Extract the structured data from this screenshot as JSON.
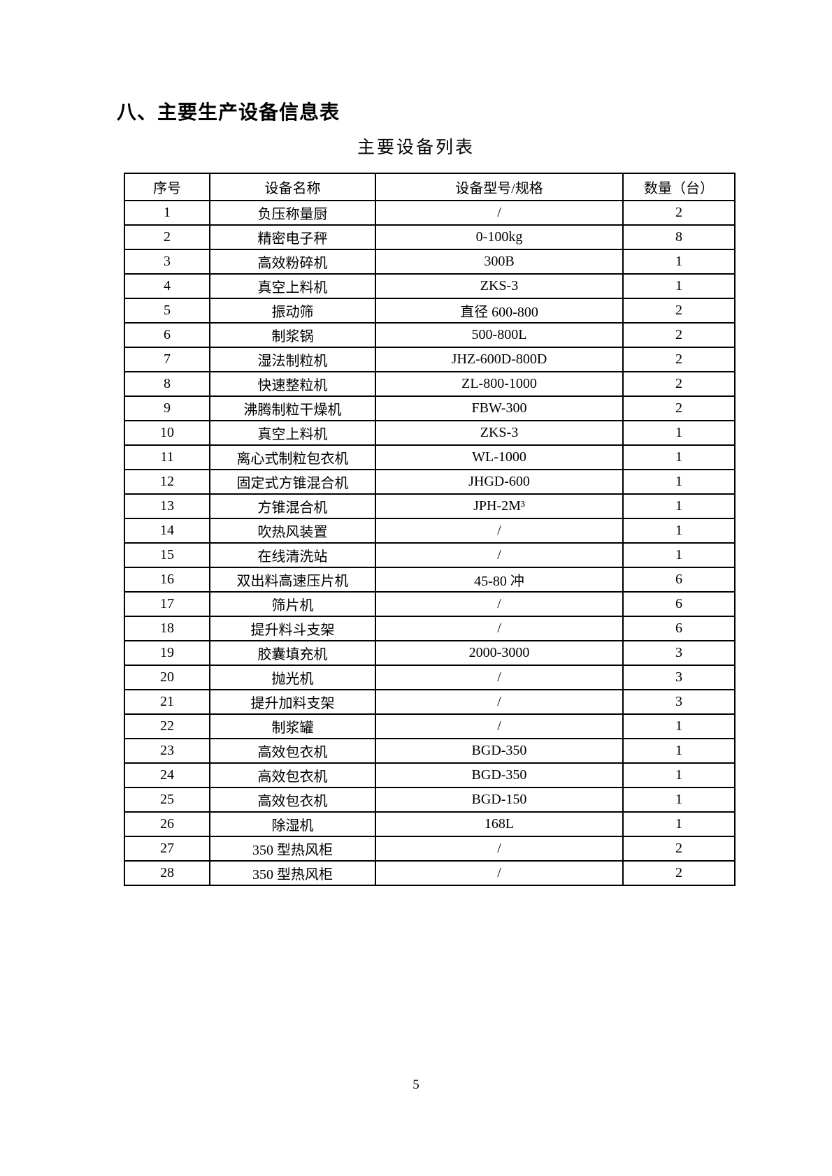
{
  "page": {
    "heading": "八、主要生产设备信息表",
    "table_title": "主要设备列表",
    "page_number": "5"
  },
  "table": {
    "columns": [
      "序号",
      "设备名称",
      "设备型号/规格",
      "数量（台）"
    ],
    "rows": [
      {
        "no": "1",
        "name": "负压称量厨",
        "model": "/",
        "qty": "2"
      },
      {
        "no": "2",
        "name": "精密电子秤",
        "model": "0-100kg",
        "qty": "8"
      },
      {
        "no": "3",
        "name": "高效粉碎机",
        "model": "300B",
        "qty": "1"
      },
      {
        "no": "4",
        "name": "真空上料机",
        "model": "ZKS-3",
        "qty": "1"
      },
      {
        "no": "5",
        "name": "振动筛",
        "model": "直径 600-800",
        "qty": "2"
      },
      {
        "no": "6",
        "name": "制浆锅",
        "model": "500-800L",
        "qty": "2"
      },
      {
        "no": "7",
        "name": "湿法制粒机",
        "model": "JHZ-600D-800D",
        "qty": "2"
      },
      {
        "no": "8",
        "name": "快速整粒机",
        "model": "ZL-800-1000",
        "qty": "2"
      },
      {
        "no": "9",
        "name": "沸腾制粒干燥机",
        "model": "FBW-300",
        "qty": "2"
      },
      {
        "no": "10",
        "name": "真空上料机",
        "model": "ZKS-3",
        "qty": "1"
      },
      {
        "no": "11",
        "name": "离心式制粒包衣机",
        "model": "WL-1000",
        "qty": "1"
      },
      {
        "no": "12",
        "name": "固定式方锥混合机",
        "model": "JHGD-600",
        "qty": "1"
      },
      {
        "no": "13",
        "name": "方锥混合机",
        "model": "JPH-2M³",
        "qty": "1"
      },
      {
        "no": "14",
        "name": "吹热风装置",
        "model": "/",
        "qty": "1"
      },
      {
        "no": "15",
        "name": "在线清洗站",
        "model": "/",
        "qty": "1"
      },
      {
        "no": "16",
        "name": "双出料高速压片机",
        "model": "45-80 冲",
        "qty": "6"
      },
      {
        "no": "17",
        "name": "筛片机",
        "model": "/",
        "qty": "6"
      },
      {
        "no": "18",
        "name": "提升料斗支架",
        "model": "/",
        "qty": "6"
      },
      {
        "no": "19",
        "name": "胶囊填充机",
        "model": "2000-3000",
        "qty": "3"
      },
      {
        "no": "20",
        "name": "抛光机",
        "model": "/",
        "qty": "3"
      },
      {
        "no": "21",
        "name": "提升加料支架",
        "model": "/",
        "qty": "3"
      },
      {
        "no": "22",
        "name": "制浆罐",
        "model": "/",
        "qty": "1"
      },
      {
        "no": "23",
        "name": "高效包衣机",
        "model": "BGD-350",
        "qty": "1"
      },
      {
        "no": "24",
        "name": "高效包衣机",
        "model": "BGD-350",
        "qty": "1"
      },
      {
        "no": "25",
        "name": "高效包衣机",
        "model": "BGD-150",
        "qty": "1"
      },
      {
        "no": "26",
        "name": "除湿机",
        "model": "168L",
        "qty": "1"
      },
      {
        "no": "27",
        "name": "350 型热风柜",
        "model": "/",
        "qty": "2"
      },
      {
        "no": "28",
        "name": "350 型热风柜",
        "model": "/",
        "qty": "2"
      }
    ]
  }
}
